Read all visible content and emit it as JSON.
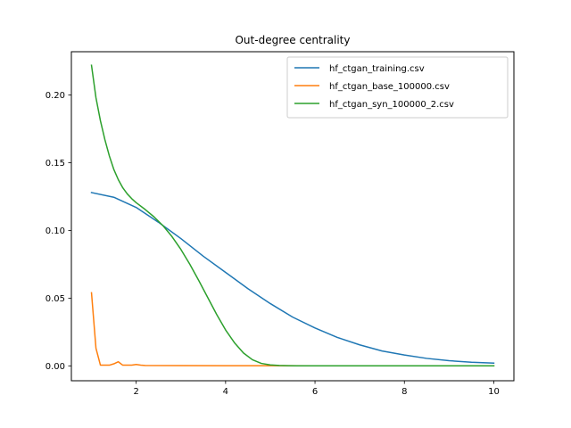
{
  "chart_data": {
    "type": "line",
    "title": "Out-degree centrality",
    "xlabel": "",
    "ylabel": "",
    "xlim": [
      0.55,
      10.45
    ],
    "ylim": [
      -0.011,
      0.232
    ],
    "xticks": [
      2,
      4,
      6,
      8,
      10
    ],
    "xtick_labels": [
      "2",
      "4",
      "6",
      "8",
      "10"
    ],
    "yticks": [
      0.0,
      0.05,
      0.1,
      0.15,
      0.2
    ],
    "ytick_labels": [
      "0.00",
      "0.05",
      "0.10",
      "0.15",
      "0.20"
    ],
    "grid": false,
    "legend_position": "top-right",
    "series": [
      {
        "name": "hf_ctgan_training.csv",
        "color": "#1f77b4",
        "x": [
          1.0,
          1.5,
          2.0,
          2.5,
          3.0,
          3.5,
          4.0,
          4.5,
          5.0,
          5.5,
          6.0,
          6.5,
          7.0,
          7.5,
          8.0,
          8.5,
          9.0,
          9.5,
          10.0
        ],
        "y": [
          0.128,
          0.1245,
          0.117,
          0.106,
          0.094,
          0.081,
          0.069,
          0.057,
          0.046,
          0.036,
          0.028,
          0.021,
          0.0155,
          0.011,
          0.008,
          0.0055,
          0.0038,
          0.0027,
          0.002
        ]
      },
      {
        "name": "hf_ctgan_base_100000.csv",
        "color": "#ff7f0e",
        "x": [
          1.0,
          1.1,
          1.2,
          1.3,
          1.4,
          1.5,
          1.6,
          1.7,
          1.8,
          1.9,
          2.0,
          2.1,
          2.2,
          3.0,
          4.0,
          5.0,
          6.0,
          7.0,
          8.0,
          9.0,
          10.0
        ],
        "y": [
          0.054,
          0.013,
          0.0005,
          0.0005,
          0.0005,
          0.0015,
          0.003,
          0.0005,
          0.0005,
          0.0005,
          0.001,
          0.0005,
          0.0003,
          0.0002,
          0.0001,
          0.0001,
          0.0,
          0.0,
          0.0,
          0.0,
          0.0
        ]
      },
      {
        "name": "hf_ctgan_syn_100000_2.csv",
        "color": "#2ca02c",
        "x": [
          1.0,
          1.1,
          1.2,
          1.3,
          1.4,
          1.5,
          1.6,
          1.7,
          1.8,
          1.9,
          2.0,
          2.2,
          2.4,
          2.6,
          2.8,
          3.0,
          3.2,
          3.4,
          3.6,
          3.8,
          4.0,
          4.2,
          4.4,
          4.6,
          4.8,
          5.0,
          5.2,
          5.4,
          5.6,
          5.8,
          6.0,
          6.5,
          7.0,
          8.0,
          9.0,
          10.0
        ],
        "y": [
          0.222,
          0.198,
          0.181,
          0.167,
          0.155,
          0.145,
          0.1375,
          0.1315,
          0.127,
          0.1235,
          0.1205,
          0.1155,
          0.11,
          0.1035,
          0.0955,
          0.086,
          0.075,
          0.063,
          0.0505,
          0.038,
          0.0265,
          0.017,
          0.0095,
          0.0045,
          0.0018,
          0.0007,
          0.0003,
          0.0001,
          0.0,
          0.0,
          0.0,
          0.0,
          0.0,
          0.0,
          0.0,
          0.0
        ]
      }
    ]
  }
}
